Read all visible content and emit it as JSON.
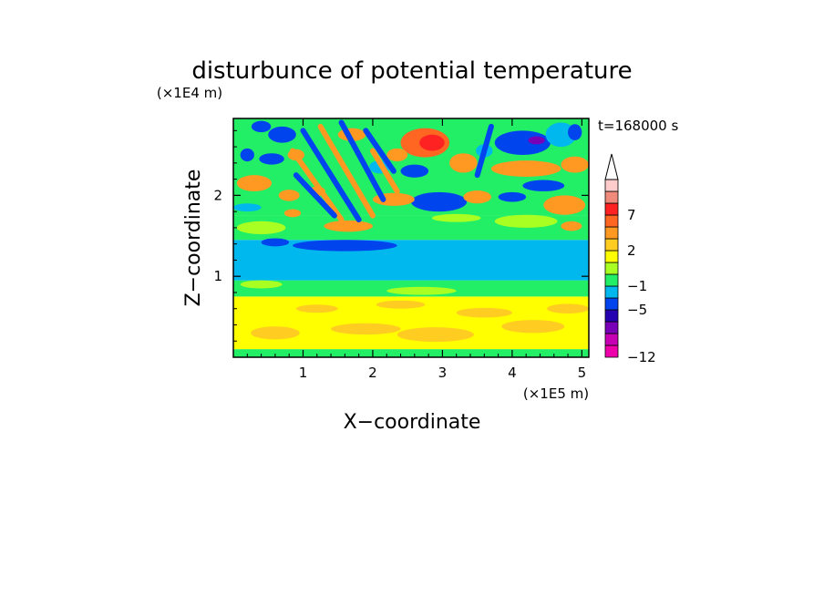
{
  "chart_data": {
    "type": "heatmap",
    "title": "disturbunce of potential temperature",
    "xlabel": "X−coordinate",
    "ylabel": "Z−coordinate",
    "x_unit": "(×1E5 m)",
    "y_unit": "(×1E4 m)",
    "time_label": "t=168000 s",
    "xlim": [
      0,
      5.1
    ],
    "ylim": [
      0,
      2.95
    ],
    "x_ticks": [
      1,
      2,
      3,
      4,
      5
    ],
    "y_ticks": [
      1,
      2
    ],
    "colorbar": {
      "levels": [
        -12,
        -11,
        -9,
        -7,
        -5,
        -3,
        -1,
        0,
        1,
        2,
        3,
        5,
        7,
        9,
        11
      ],
      "labeled": [
        -12,
        -5,
        -1,
        2,
        7
      ],
      "colors": [
        "#ee00aa",
        "#c800b4",
        "#7a00b8",
        "#2400b0",
        "#0044ee",
        "#00b8ee",
        "#22ee66",
        "#aaff22",
        "#ffff00",
        "#ffcc22",
        "#ff9922",
        "#ff6622",
        "#ff2222",
        "#f08a7a",
        "#ffcccc"
      ],
      "extend": "max"
    },
    "layers": [
      {
        "name": "surface",
        "y_range": [
          0,
          0.1
        ],
        "color": "#22ee66"
      },
      {
        "name": "lower",
        "y_range": [
          0.1,
          0.75
        ],
        "color": "#ffff00"
      },
      {
        "name": "transition",
        "y_range": [
          0.75,
          0.95
        ],
        "color": "#22ee66"
      },
      {
        "name": "middle",
        "y_range": [
          0.95,
          1.45
        ],
        "color": "#00b8ee"
      },
      {
        "name": "upper-transition",
        "y_range": [
          1.45,
          1.75
        ],
        "color": "#22ee66"
      },
      {
        "name": "upper",
        "y_range": [
          1.75,
          2.95
        ],
        "color": "#22ee66"
      }
    ],
    "blobs": [
      {
        "x": 0.6,
        "y": 0.3,
        "rx": 0.35,
        "ry": 0.08,
        "v": 2.5
      },
      {
        "x": 1.9,
        "y": 0.35,
        "rx": 0.5,
        "ry": 0.07,
        "v": 2.5
      },
      {
        "x": 2.9,
        "y": 0.28,
        "rx": 0.55,
        "ry": 0.09,
        "v": 2.5
      },
      {
        "x": 4.3,
        "y": 0.38,
        "rx": 0.45,
        "ry": 0.08,
        "v": 2.5
      },
      {
        "x": 3.6,
        "y": 0.55,
        "rx": 0.4,
        "ry": 0.06,
        "v": 2.5
      },
      {
        "x": 1.2,
        "y": 0.6,
        "rx": 0.3,
        "ry": 0.05,
        "v": 2.5
      },
      {
        "x": 4.8,
        "y": 0.6,
        "rx": 0.3,
        "ry": 0.06,
        "v": 2.5
      },
      {
        "x": 2.4,
        "y": 0.65,
        "rx": 0.35,
        "ry": 0.05,
        "v": 2.5
      },
      {
        "x": 0.4,
        "y": 0.9,
        "rx": 0.3,
        "ry": 0.05,
        "v": 0.5
      },
      {
        "x": 2.7,
        "y": 0.82,
        "rx": 0.5,
        "ry": 0.05,
        "v": 0.5
      },
      {
        "x": 1.6,
        "y": 1.38,
        "rx": 0.75,
        "ry": 0.07,
        "v": -4
      },
      {
        "x": 0.6,
        "y": 1.42,
        "rx": 0.2,
        "ry": 0.05,
        "v": -4
      },
      {
        "x": 0.4,
        "y": 1.6,
        "rx": 0.35,
        "ry": 0.08,
        "v": 0.5
      },
      {
        "x": 3.2,
        "y": 1.72,
        "rx": 0.35,
        "ry": 0.05,
        "v": 0.5
      },
      {
        "x": 0.2,
        "y": 1.85,
        "rx": 0.2,
        "ry": 0.05,
        "v": -2
      },
      {
        "x": 0.3,
        "y": 2.15,
        "rx": 0.25,
        "ry": 0.1,
        "v": 3.5
      },
      {
        "x": 0.8,
        "y": 2.0,
        "rx": 0.15,
        "ry": 0.07,
        "v": 3.5
      },
      {
        "x": 1.2,
        "y": 2.05,
        "rx": 0.12,
        "ry": 0.06,
        "v": 3.5
      },
      {
        "x": 0.85,
        "y": 1.78,
        "rx": 0.12,
        "ry": 0.05,
        "v": 3.5
      },
      {
        "x": 2.95,
        "y": 1.92,
        "rx": 0.4,
        "ry": 0.12,
        "v": -4
      },
      {
        "x": 2.3,
        "y": 1.95,
        "rx": 0.3,
        "ry": 0.08,
        "v": 3.5
      },
      {
        "x": 3.5,
        "y": 1.98,
        "rx": 0.2,
        "ry": 0.08,
        "v": 3.5
      },
      {
        "x": 2.6,
        "y": 2.3,
        "rx": 0.2,
        "ry": 0.08,
        "v": -4
      },
      {
        "x": 2.1,
        "y": 2.35,
        "rx": 0.15,
        "ry": 0.08,
        "v": -2
      },
      {
        "x": 0.55,
        "y": 2.45,
        "rx": 0.18,
        "ry": 0.07,
        "v": -4
      },
      {
        "x": 0.2,
        "y": 2.5,
        "rx": 0.1,
        "ry": 0.08,
        "v": -4
      },
      {
        "x": 0.9,
        "y": 2.5,
        "rx": 0.12,
        "ry": 0.07,
        "v": 3.5
      },
      {
        "x": 2.75,
        "y": 2.65,
        "rx": 0.35,
        "ry": 0.18,
        "v": 5.5
      },
      {
        "x": 2.85,
        "y": 2.65,
        "rx": 0.18,
        "ry": 0.1,
        "v": 8
      },
      {
        "x": 2.35,
        "y": 2.5,
        "rx": 0.15,
        "ry": 0.08,
        "v": 3.5
      },
      {
        "x": 3.3,
        "y": 2.4,
        "rx": 0.2,
        "ry": 0.12,
        "v": 3.5
      },
      {
        "x": 3.6,
        "y": 2.55,
        "rx": 0.12,
        "ry": 0.08,
        "v": -2
      },
      {
        "x": 4.15,
        "y": 2.65,
        "rx": 0.4,
        "ry": 0.15,
        "v": -4
      },
      {
        "x": 4.35,
        "y": 2.68,
        "rx": 0.12,
        "ry": 0.05,
        "v": -8
      },
      {
        "x": 4.7,
        "y": 2.75,
        "rx": 0.22,
        "ry": 0.15,
        "v": -2
      },
      {
        "x": 4.9,
        "y": 2.78,
        "rx": 0.1,
        "ry": 0.1,
        "v": -4
      },
      {
        "x": 0.7,
        "y": 2.75,
        "rx": 0.2,
        "ry": 0.1,
        "v": -4
      },
      {
        "x": 0.4,
        "y": 2.85,
        "rx": 0.14,
        "ry": 0.07,
        "v": -4
      },
      {
        "x": 1.7,
        "y": 2.75,
        "rx": 0.2,
        "ry": 0.08,
        "v": 3.5
      },
      {
        "x": 4.2,
        "y": 2.33,
        "rx": 0.5,
        "ry": 0.1,
        "v": 3.5
      },
      {
        "x": 4.9,
        "y": 2.38,
        "rx": 0.2,
        "ry": 0.1,
        "v": 3.5
      },
      {
        "x": 4.45,
        "y": 2.12,
        "rx": 0.3,
        "ry": 0.07,
        "v": -4
      },
      {
        "x": 4.0,
        "y": 1.98,
        "rx": 0.2,
        "ry": 0.06,
        "v": -4
      },
      {
        "x": 4.75,
        "y": 1.88,
        "rx": 0.3,
        "ry": 0.12,
        "v": 3.5
      },
      {
        "x": 4.2,
        "y": 1.68,
        "rx": 0.45,
        "ry": 0.08,
        "v": 0.5
      },
      {
        "x": 4.85,
        "y": 1.62,
        "rx": 0.15,
        "ry": 0.06,
        "v": 3.5
      },
      {
        "x": 1.65,
        "y": 1.62,
        "rx": 0.35,
        "ry": 0.07,
        "v": 3.5
      }
    ],
    "streaks": [
      {
        "x1": 1.0,
        "y1": 2.8,
        "x2": 1.8,
        "y2": 1.7,
        "v": -4
      },
      {
        "x1": 1.25,
        "y1": 2.85,
        "x2": 2.0,
        "y2": 1.75,
        "v": 3.5
      },
      {
        "x1": 1.55,
        "y1": 2.9,
        "x2": 2.15,
        "y2": 1.95,
        "v": -4
      },
      {
        "x1": 0.85,
        "y1": 2.55,
        "x2": 1.55,
        "y2": 1.7,
        "v": 3.5
      },
      {
        "x1": 1.9,
        "y1": 2.8,
        "x2": 2.3,
        "y2": 2.3,
        "v": -4
      },
      {
        "x1": 0.9,
        "y1": 2.25,
        "x2": 1.45,
        "y2": 1.75,
        "v": -4
      },
      {
        "x1": 2.0,
        "y1": 2.55,
        "x2": 2.35,
        "y2": 2.05,
        "v": 3.5
      },
      {
        "x1": 3.7,
        "y1": 2.85,
        "x2": 3.5,
        "y2": 2.25,
        "v": -4
      }
    ]
  }
}
